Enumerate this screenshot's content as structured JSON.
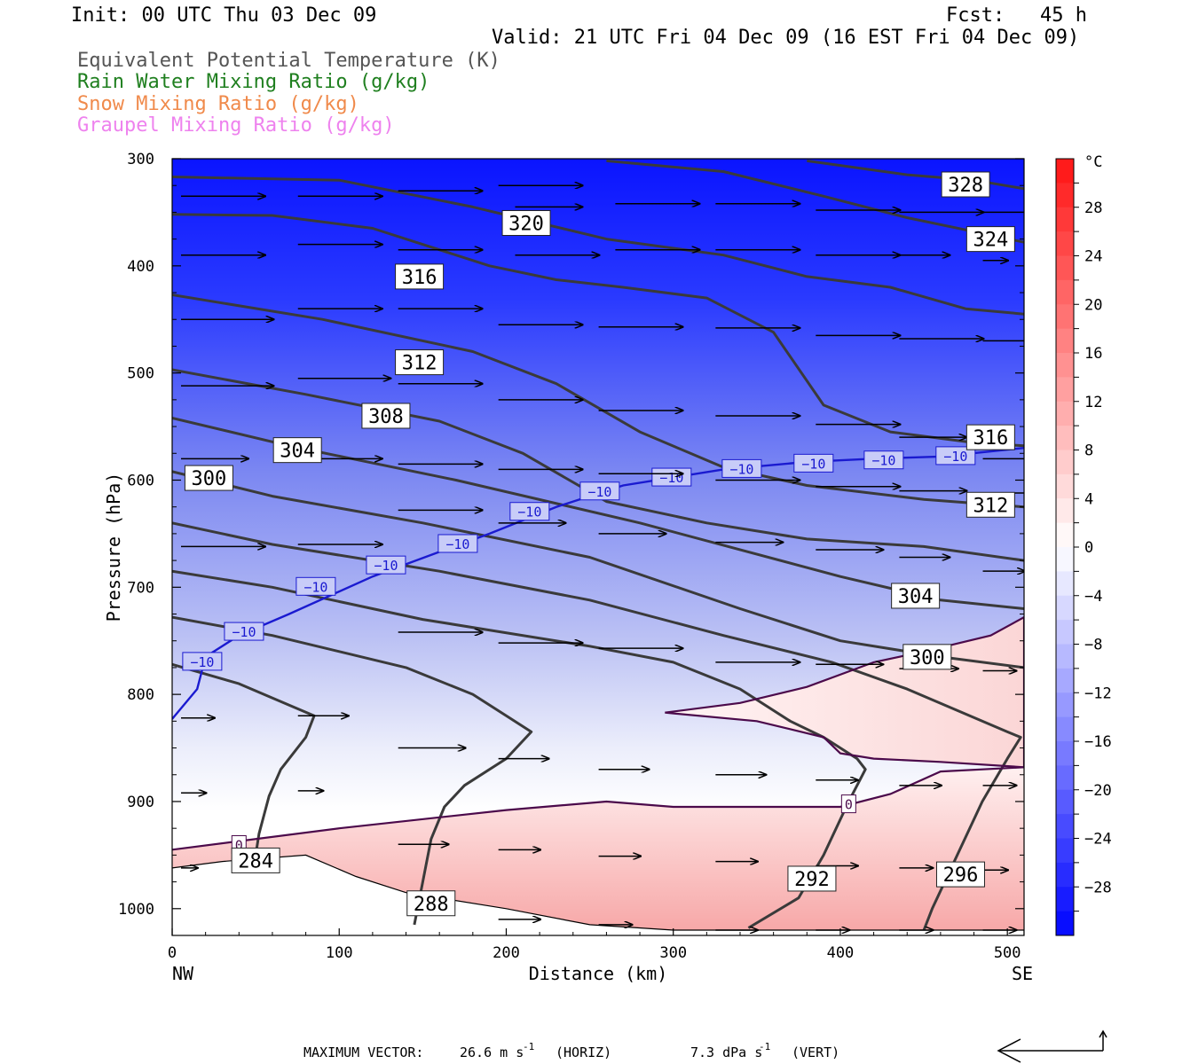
{
  "header": {
    "init": "Init: 00 UTC Thu 03 Dec 09",
    "fcst": "Fcst:   45 h",
    "valid": "Valid: 21 UTC Fri 04 Dec 09 (16 EST Fri 04 Dec 09)"
  },
  "legend": [
    {
      "label": "Equivalent Potential Temperature (K)",
      "color": "#555555"
    },
    {
      "label": "Rain Water Mixing Ratio (g/kg)",
      "color": "#1f7f1f"
    },
    {
      "label": "Snow Mixing Ratio (g/kg)",
      "color": "#f08a4b"
    },
    {
      "label": "Graupel Mixing Ratio (g/kg)",
      "color": "#ee82ee"
    }
  ],
  "chart_data": {
    "type": "contour",
    "xlabel": "Distance (km)",
    "ylabel": "Pressure (hPa)",
    "xlim": [
      0,
      510
    ],
    "ylim": [
      1025,
      300
    ],
    "x_ticks": [
      0,
      100,
      200,
      300,
      400,
      500
    ],
    "y_ticks": [
      300,
      400,
      500,
      600,
      700,
      800,
      900,
      1000
    ],
    "x_end_labels": {
      "left": "NW",
      "right": "SE"
    },
    "colorbar": {
      "unit": "°C",
      "ticks": [
        28,
        24,
        20,
        16,
        12,
        8,
        4,
        0,
        -4,
        -8,
        -12,
        -16,
        -20,
        -24,
        -28
      ],
      "vmin": -32,
      "vmax": 32
    },
    "theta_e_contours": [
      {
        "label": "284",
        "pts": [
          [
            0,
            962
          ],
          [
            30,
            956
          ],
          [
            80,
            950
          ],
          [
            110,
            970
          ],
          [
            140,
            985
          ],
          [
            200,
            1000
          ],
          [
            250,
            1015
          ],
          [
            300,
            1020
          ],
          [
            510,
            1020
          ]
        ]
      },
      {
        "label": "288",
        "pts": [
          [
            0,
            772
          ],
          [
            40,
            790
          ],
          [
            70,
            810
          ],
          [
            85,
            820
          ],
          [
            80,
            840
          ],
          [
            65,
            870
          ],
          [
            58,
            895
          ],
          [
            52,
            930
          ],
          [
            50,
            950
          ]
        ]
      },
      {
        "label": "292",
        "pts": [
          [
            0,
            728
          ],
          [
            60,
            745
          ],
          [
            140,
            775
          ],
          [
            180,
            800
          ],
          [
            200,
            820
          ],
          [
            215,
            835
          ],
          [
            200,
            860
          ],
          [
            175,
            885
          ],
          [
            163,
            905
          ],
          [
            155,
            935
          ],
          [
            150,
            975
          ],
          [
            145,
            1015
          ]
        ]
      },
      {
        "label": "296",
        "pts": [
          [
            0,
            685
          ],
          [
            60,
            700
          ],
          [
            150,
            730
          ],
          [
            250,
            755
          ],
          [
            300,
            770
          ],
          [
            340,
            795
          ],
          [
            370,
            825
          ],
          [
            390,
            840
          ],
          [
            410,
            860
          ],
          [
            415,
            870
          ],
          [
            405,
            900
          ],
          [
            390,
            950
          ],
          [
            375,
            990
          ],
          [
            345,
            1018
          ]
        ]
      },
      {
        "label": "300",
        "pts": [
          [
            0,
            640
          ],
          [
            60,
            660
          ],
          [
            160,
            685
          ],
          [
            250,
            712
          ],
          [
            330,
            745
          ],
          [
            395,
            770
          ],
          [
            440,
            795
          ],
          [
            470,
            815
          ],
          [
            500,
            835
          ],
          [
            508,
            840
          ],
          [
            500,
            860
          ],
          [
            485,
            900
          ],
          [
            470,
            950
          ],
          [
            455,
            1000
          ],
          [
            450,
            1020
          ]
        ]
      },
      {
        "label": "300",
        "pts": [
          [
            0,
            592
          ],
          [
            60,
            615
          ],
          [
            150,
            640
          ],
          [
            250,
            672
          ],
          [
            340,
            720
          ],
          [
            400,
            750
          ],
          [
            460,
            765
          ],
          [
            510,
            775
          ]
        ]
      },
      {
        "label": "304",
        "pts": [
          [
            0,
            542
          ],
          [
            70,
            568
          ],
          [
            170,
            600
          ],
          [
            280,
            640
          ],
          [
            400,
            690
          ],
          [
            460,
            712
          ],
          [
            510,
            720
          ]
        ]
      },
      {
        "label": "308",
        "pts": [
          [
            0,
            497
          ],
          [
            80,
            520
          ],
          [
            160,
            545
          ],
          [
            210,
            575
          ],
          [
            260,
            620
          ],
          [
            320,
            640
          ],
          [
            380,
            655
          ],
          [
            450,
            662
          ],
          [
            510,
            675
          ]
        ]
      },
      {
        "label": "312",
        "pts": [
          [
            0,
            427
          ],
          [
            90,
            450
          ],
          [
            180,
            480
          ],
          [
            230,
            510
          ],
          [
            280,
            555
          ],
          [
            330,
            588
          ],
          [
            380,
            605
          ],
          [
            450,
            618
          ],
          [
            510,
            625
          ]
        ]
      },
      {
        "label": "316",
        "pts": [
          [
            0,
            352
          ],
          [
            60,
            353
          ],
          [
            120,
            365
          ],
          [
            190,
            400
          ],
          [
            230,
            413
          ],
          [
            270,
            420
          ],
          [
            320,
            430
          ],
          [
            360,
            462
          ],
          [
            390,
            530
          ],
          [
            430,
            555
          ],
          [
            480,
            565
          ],
          [
            510,
            568
          ]
        ]
      },
      {
        "label": "320",
        "pts": [
          [
            0,
            317
          ],
          [
            100,
            320
          ],
          [
            180,
            345
          ],
          [
            260,
            375
          ],
          [
            330,
            390
          ],
          [
            380,
            410
          ],
          [
            430,
            420
          ],
          [
            475,
            440
          ],
          [
            510,
            445
          ]
        ]
      },
      {
        "label": "324",
        "pts": [
          [
            260,
            302
          ],
          [
            330,
            312
          ],
          [
            390,
            335
          ],
          [
            440,
            355
          ],
          [
            480,
            368
          ],
          [
            510,
            378
          ]
        ]
      },
      {
        "label": "328",
        "pts": [
          [
            380,
            302
          ],
          [
            440,
            315
          ],
          [
            480,
            320
          ],
          [
            510,
            328
          ]
        ]
      }
    ],
    "theta_e_labels": [
      {
        "text": "284",
        "x": 50,
        "y": 955
      },
      {
        "text": "288",
        "x": 155,
        "y": 995
      },
      {
        "text": "292",
        "x": 383,
        "y": 972
      },
      {
        "text": "296",
        "x": 472,
        "y": 968
      },
      {
        "text": "300",
        "x": 22,
        "y": 598
      },
      {
        "text": "300",
        "x": 452,
        "y": 765
      },
      {
        "text": "304",
        "x": 75,
        "y": 572
      },
      {
        "text": "304",
        "x": 445,
        "y": 708
      },
      {
        "text": "308",
        "x": 128,
        "y": 540
      },
      {
        "text": "312",
        "x": 148,
        "y": 490
      },
      {
        "text": "312",
        "x": 490,
        "y": 623
      },
      {
        "text": "316",
        "x": 148,
        "y": 410
      },
      {
        "text": "316",
        "x": 490,
        "y": 560
      },
      {
        "text": "320",
        "x": 212,
        "y": 360
      },
      {
        "text": "324",
        "x": 490,
        "y": 375
      },
      {
        "text": "328",
        "x": 475,
        "y": 324
      }
    ],
    "isotherm_minus10": {
      "label": "−10",
      "pts": [
        [
          0,
          823
        ],
        [
          15,
          795
        ],
        [
          20,
          765
        ],
        [
          40,
          745
        ],
        [
          70,
          725
        ],
        [
          120,
          690
        ],
        [
          160,
          667
        ],
        [
          190,
          650
        ],
        [
          230,
          625
        ],
        [
          270,
          605
        ],
        [
          330,
          590
        ],
        [
          380,
          583
        ],
        [
          420,
          580
        ],
        [
          460,
          578
        ],
        [
          510,
          570
        ]
      ],
      "label_positions": [
        [
          18,
          770
        ],
        [
          43,
          742
        ],
        [
          86,
          700
        ],
        [
          128,
          680
        ],
        [
          171,
          660
        ],
        [
          214,
          630
        ],
        [
          256,
          611
        ],
        [
          299,
          598
        ],
        [
          341,
          590
        ],
        [
          384,
          585
        ],
        [
          426,
          582
        ],
        [
          469,
          578
        ]
      ]
    },
    "isotherm_zero": {
      "label": "0",
      "pts": [
        [
          0,
          945
        ],
        [
          100,
          925
        ],
        [
          200,
          908
        ],
        [
          260,
          900
        ],
        [
          300,
          905
        ],
        [
          400,
          905
        ],
        [
          430,
          893
        ],
        [
          460,
          872
        ],
        [
          510,
          868
        ]
      ],
      "label_positions": [
        [
          405,
          903
        ],
        [
          40,
          941
        ]
      ]
    },
    "warm_region_zero": {
      "pts": [
        [
          295,
          817
        ],
        [
          340,
          808
        ],
        [
          380,
          793
        ],
        [
          420,
          770
        ],
        [
          450,
          760
        ],
        [
          490,
          745
        ],
        [
          510,
          728
        ],
        [
          510,
          868
        ],
        [
          460,
          863
        ],
        [
          420,
          860
        ],
        [
          400,
          855
        ],
        [
          390,
          840
        ],
        [
          350,
          825
        ],
        [
          295,
          817
        ]
      ]
    },
    "wind_vectors": [
      [
        0,
        335,
        50,
        0
      ],
      [
        70,
        335,
        50,
        0
      ],
      [
        130,
        330,
        50,
        0
      ],
      [
        190,
        325,
        50,
        0
      ],
      [
        0,
        390,
        50,
        0
      ],
      [
        70,
        380,
        50,
        0
      ],
      [
        130,
        385,
        50,
        0
      ],
      [
        0,
        450,
        55,
        0
      ],
      [
        70,
        440,
        50,
        0
      ],
      [
        130,
        440,
        50,
        0
      ],
      [
        0,
        512,
        55,
        0
      ],
      [
        70,
        505,
        55,
        0
      ],
      [
        130,
        510,
        50,
        0
      ],
      [
        0,
        580,
        40,
        0
      ],
      [
        70,
        580,
        50,
        0
      ],
      [
        0,
        662,
        50,
        0
      ],
      [
        70,
        660,
        50,
        0
      ],
      [
        0,
        822,
        20,
        0
      ],
      [
        70,
        820,
        30,
        0
      ],
      [
        0,
        892,
        15,
        0
      ],
      [
        70,
        890,
        15,
        0
      ],
      [
        0,
        962,
        10,
        0
      ],
      [
        200,
        390,
        50,
        0
      ],
      [
        260,
        385,
        50,
        0
      ],
      [
        320,
        385,
        50,
        0
      ],
      [
        380,
        390,
        50,
        0
      ],
      [
        430,
        390,
        30,
        0
      ],
      [
        480,
        395,
        15,
        0
      ],
      [
        200,
        345,
        40,
        0
      ],
      [
        260,
        342,
        50,
        0
      ],
      [
        320,
        342,
        50,
        0
      ],
      [
        380,
        348,
        50,
        0
      ],
      [
        430,
        350,
        50,
        0
      ],
      [
        480,
        350,
        40,
        0
      ],
      [
        190,
        455,
        50,
        0
      ],
      [
        250,
        457,
        50,
        0
      ],
      [
        320,
        458,
        50,
        0
      ],
      [
        380,
        465,
        50,
        0
      ],
      [
        430,
        468,
        50,
        0
      ],
      [
        480,
        470,
        35,
        0
      ],
      [
        190,
        525,
        50,
        0
      ],
      [
        250,
        535,
        50,
        0
      ],
      [
        320,
        540,
        50,
        0
      ],
      [
        380,
        548,
        50,
        0
      ],
      [
        430,
        560,
        40,
        0
      ],
      [
        480,
        580,
        30,
        0
      ],
      [
        130,
        585,
        50,
        0
      ],
      [
        190,
        590,
        50,
        0
      ],
      [
        250,
        594,
        50,
        0
      ],
      [
        320,
        600,
        50,
        0
      ],
      [
        380,
        606,
        50,
        0
      ],
      [
        430,
        610,
        40,
        0
      ],
      [
        480,
        612,
        30,
        0
      ],
      [
        130,
        628,
        50,
        0
      ],
      [
        190,
        640,
        40,
        0
      ],
      [
        250,
        650,
        40,
        0
      ],
      [
        320,
        658,
        40,
        0
      ],
      [
        380,
        665,
        40,
        0
      ],
      [
        430,
        672,
        30,
        0
      ],
      [
        480,
        685,
        25,
        0
      ],
      [
        130,
        742,
        50,
        0
      ],
      [
        190,
        752,
        50,
        0
      ],
      [
        250,
        757,
        50,
        0
      ],
      [
        320,
        770,
        50,
        0
      ],
      [
        380,
        772,
        40,
        0
      ],
      [
        430,
        776,
        35,
        0
      ],
      [
        480,
        778,
        20,
        0
      ],
      [
        130,
        850,
        40,
        0
      ],
      [
        190,
        860,
        30,
        0
      ],
      [
        250,
        870,
        30,
        0
      ],
      [
        320,
        875,
        30,
        0
      ],
      [
        380,
        880,
        25,
        0
      ],
      [
        430,
        885,
        25,
        0
      ],
      [
        480,
        885,
        20,
        0
      ],
      [
        130,
        940,
        30,
        0
      ],
      [
        190,
        945,
        25,
        0
      ],
      [
        250,
        951,
        25,
        0
      ],
      [
        320,
        956,
        25,
        0
      ],
      [
        380,
        960,
        25,
        0
      ],
      [
        430,
        962,
        20,
        0
      ],
      [
        480,
        964,
        15,
        0
      ],
      [
        190,
        1010,
        25,
        0
      ],
      [
        250,
        1015,
        20,
        0
      ],
      [
        320,
        1020,
        25,
        0
      ],
      [
        380,
        1020,
        20,
        0
      ],
      [
        430,
        1020,
        20,
        0
      ],
      [
        480,
        1020,
        20,
        0
      ]
    ],
    "footer": {
      "max_vector_label": "MAXIMUM VECTOR:",
      "horiz_value": "26.6 m s",
      "horiz_exp": "-1",
      "horiz_tag": "(HORIZ)",
      "vert_value": "7.3 dPa s",
      "vert_exp": "-1",
      "vert_tag": "(VERT)"
    }
  }
}
